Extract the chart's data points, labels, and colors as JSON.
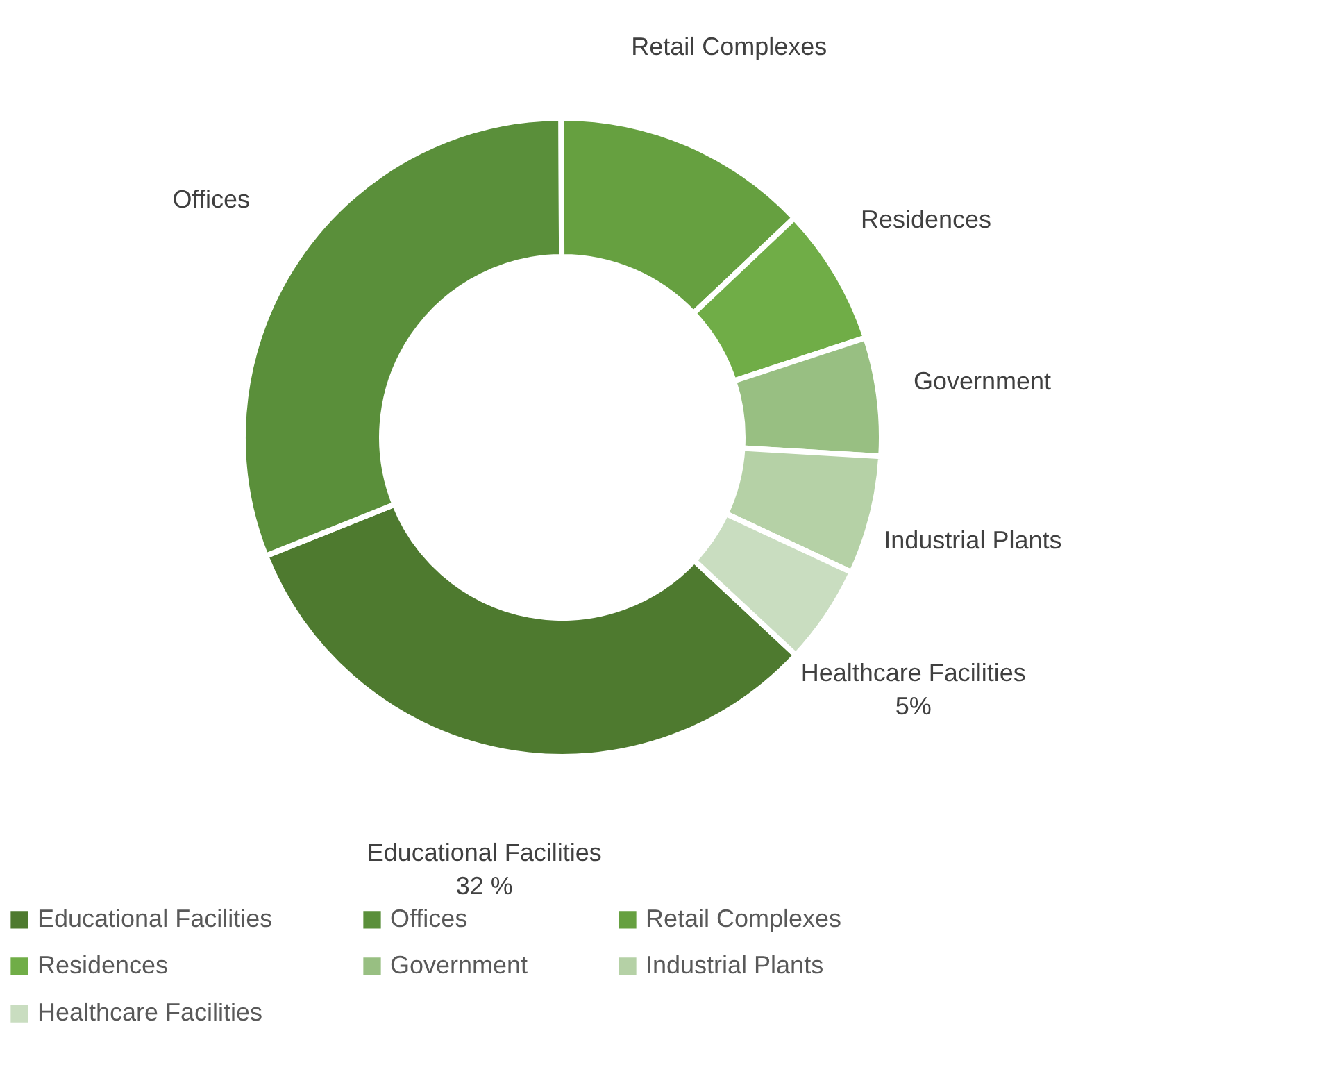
{
  "chart_data": {
    "type": "donut",
    "categories": [
      "Educational Facilities",
      "Offices",
      "Retail Complexes",
      "Residences",
      "Government",
      "Industrial Plants",
      "Healthcare Facilities"
    ],
    "values": [
      32,
      31,
      13,
      7,
      6,
      6,
      5
    ],
    "colors": [
      "#4e7a2f",
      "#5a8f3a",
      "#66a040",
      "#70ad47",
      "#98bf82",
      "#b5d1a6",
      "#c9ddc0"
    ],
    "value_labels": [
      "32 %",
      null,
      null,
      null,
      null,
      null,
      "5%"
    ],
    "legend": "bottom"
  }
}
